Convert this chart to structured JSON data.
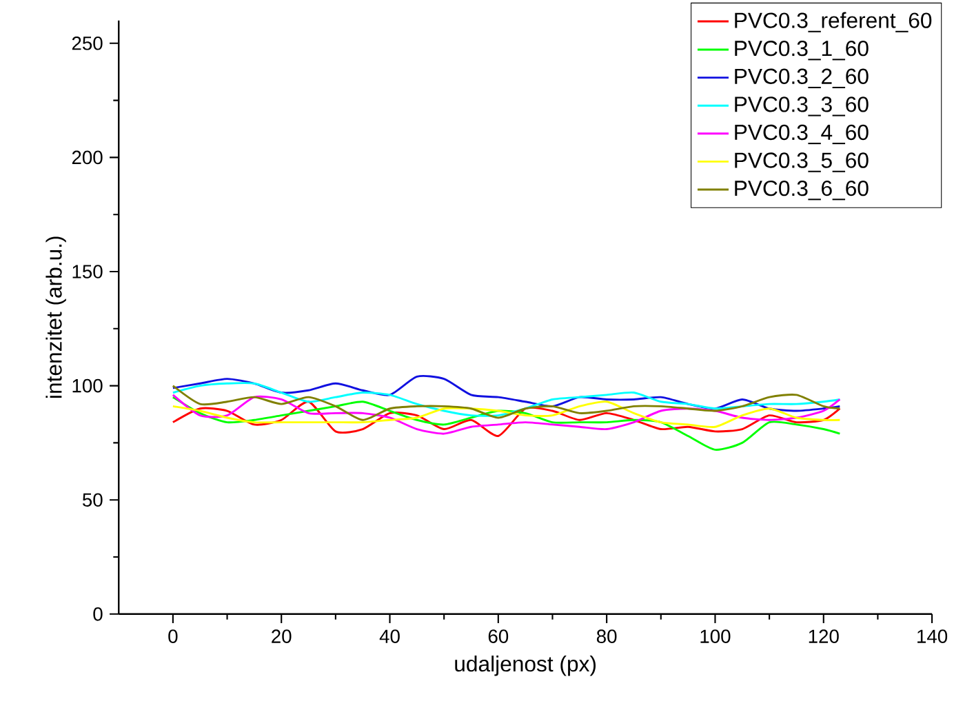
{
  "chart_data": {
    "type": "line",
    "xlabel": "udaljenost (px)",
    "ylabel": "intenzitet (arb.u.)",
    "x": [
      0,
      5,
      10,
      15,
      20,
      25,
      30,
      35,
      40,
      45,
      50,
      55,
      60,
      65,
      70,
      75,
      80,
      85,
      90,
      95,
      100,
      105,
      110,
      115,
      120,
      123
    ],
    "xlim": [
      -10,
      140
    ],
    "xticks": [
      0,
      20,
      40,
      60,
      80,
      100,
      120,
      140
    ],
    "ylim": [
      0,
      260
    ],
    "yticks": [
      0,
      50,
      100,
      150,
      200,
      250
    ],
    "grid": false,
    "legend": "top right",
    "marker": "none",
    "line_style": "solid",
    "series": [
      {
        "name": "PVC0.3_referent_60",
        "color": "#ff0000",
        "values": [
          84,
          90,
          89,
          83,
          85,
          93,
          80,
          81,
          88,
          87,
          81,
          85,
          78,
          90,
          89,
          85,
          88,
          85,
          81,
          82,
          80,
          81,
          87,
          84,
          85,
          90
        ]
      },
      {
        "name": "PVC0.3_1_60",
        "color": "#00ff00",
        "values": [
          95,
          88,
          84,
          85,
          87,
          89,
          91,
          93,
          89,
          85,
          83,
          86,
          89,
          88,
          84,
          84,
          84,
          85,
          84,
          78,
          72,
          75,
          84,
          83,
          81,
          79
        ]
      },
      {
        "name": "PVC0.3_2_60",
        "color": "#1010e0",
        "values": [
          99,
          101,
          103,
          101,
          97,
          98,
          101,
          98,
          96,
          104,
          103,
          96,
          95,
          93,
          91,
          95,
          94,
          94,
          95,
          92,
          90,
          94,
          90,
          89,
          90,
          91
        ]
      },
      {
        "name": "PVC0.3_3_60",
        "color": "#00ffff",
        "values": [
          97,
          100,
          101,
          101,
          97,
          93,
          95,
          97,
          96,
          92,
          89,
          87,
          87,
          90,
          94,
          95,
          96,
          97,
          93,
          92,
          90,
          91,
          92,
          92,
          93,
          94
        ]
      },
      {
        "name": "PVC0.3_4_60",
        "color": "#ff00ff",
        "values": [
          96,
          87,
          87,
          95,
          94,
          88,
          88,
          88,
          86,
          81,
          79,
          82,
          83,
          84,
          83,
          82,
          81,
          84,
          89,
          90,
          89,
          86,
          85,
          86,
          89,
          94
        ]
      },
      {
        "name": "PVC0.3_5_60",
        "color": "#ffff00",
        "values": [
          91,
          89,
          86,
          84,
          84,
          84,
          84,
          84,
          85,
          86,
          90,
          90,
          89,
          87,
          87,
          91,
          93,
          88,
          84,
          83,
          82,
          87,
          90,
          86,
          85,
          85
        ]
      },
      {
        "name": "PVC0.3_6_60",
        "color": "#808000",
        "values": [
          100,
          92,
          93,
          95,
          92,
          95,
          91,
          85,
          90,
          91,
          91,
          90,
          86,
          90,
          91,
          88,
          89,
          91,
          91,
          90,
          89,
          91,
          95,
          96,
          91,
          90
        ]
      }
    ]
  }
}
